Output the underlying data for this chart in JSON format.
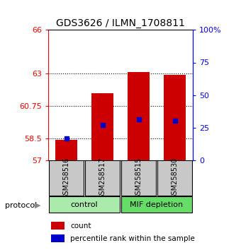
{
  "title": "GDS3626 / ILMN_1708811",
  "samples": [
    "GSM258516",
    "GSM258517",
    "GSM258515",
    "GSM258530"
  ],
  "group_labels": [
    "control",
    "MIF depletion"
  ],
  "bar_color": "#cc0000",
  "dot_color": "#0000cc",
  "bar_bottom": 57,
  "bar_tops": [
    58.4,
    61.6,
    63.1,
    62.9
  ],
  "dot_values": [
    58.5,
    59.4,
    59.8,
    59.7
  ],
  "ylim_left": [
    57,
    66
  ],
  "ylim_right": [
    0,
    100
  ],
  "yticks_left": [
    57,
    58.5,
    60.75,
    63,
    66
  ],
  "ytick_labels_left": [
    "57",
    "58.5",
    "60.75",
    "63",
    "66"
  ],
  "yticks_right": [
    0,
    25,
    50,
    75,
    100
  ],
  "ytick_labels_right": [
    "0",
    "25",
    "50",
    "75",
    "100%"
  ],
  "hlines": [
    58.5,
    60.75,
    63
  ],
  "bar_width": 0.6,
  "sample_area_color": "#c8c8c8",
  "control_group_color": "#aaeaaa",
  "mif_group_color": "#66dd66",
  "protocol_label": "protocol",
  "legend_items": [
    "count",
    "percentile rank within the sample"
  ],
  "title_fontsize": 10,
  "tick_fontsize": 8,
  "label_fontsize": 8
}
